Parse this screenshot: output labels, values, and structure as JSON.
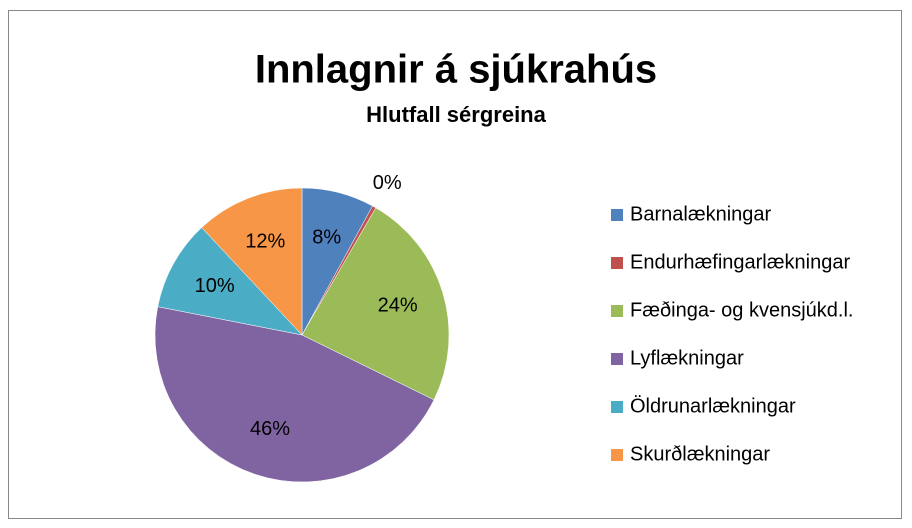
{
  "chart_data": {
    "type": "pie",
    "title": "Innlagnir á sjúkrahús",
    "subtitle": "Hlutfall sérgreina",
    "categories": [
      "Barnalækningar",
      "Endurhæfingarlækningar",
      "Fæðinga- og kvensjúkd.l.",
      "Lyflækningar",
      "Öldrunarlækningar",
      "Skurðlækningar"
    ],
    "values": [
      8,
      0.4,
      24,
      46,
      10,
      12
    ],
    "value_labels": [
      "8%",
      "0%",
      "24%",
      "46%",
      "10%",
      "12%"
    ],
    "colors": [
      "#4f81bd",
      "#c0504d",
      "#9bbb59",
      "#8064a2",
      "#4bacc6",
      "#f79646"
    ],
    "legend": "right"
  }
}
